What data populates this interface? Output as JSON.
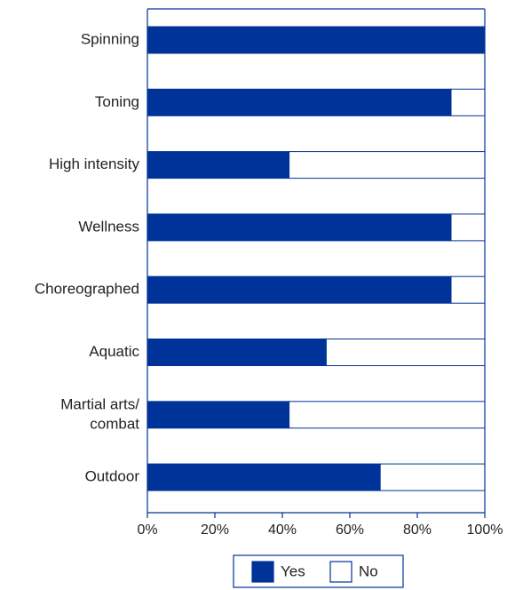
{
  "chart_data": {
    "type": "bar",
    "orientation": "horizontal",
    "stacked": true,
    "categories": [
      [
        "Spinning"
      ],
      [
        "Toning"
      ],
      [
        "High intensity"
      ],
      [
        "Wellness"
      ],
      [
        "Choreographed"
      ],
      [
        "Aquatic"
      ],
      [
        "Martial arts/",
        "combat"
      ],
      [
        "Outdoor"
      ]
    ],
    "series": [
      {
        "name": "Yes",
        "values": [
          100,
          90,
          42,
          90,
          90,
          53,
          42,
          69
        ],
        "color": "#003399"
      },
      {
        "name": "No",
        "values": [
          0,
          10,
          58,
          10,
          10,
          47,
          58,
          31
        ],
        "color": "#ffffff"
      }
    ],
    "xlim": [
      0,
      100
    ],
    "xticks": [
      0,
      20,
      40,
      60,
      80,
      100
    ],
    "xtick_labels": [
      "0%",
      "20%",
      "40%",
      "60%",
      "80%",
      "100%"
    ],
    "xlabel": "",
    "ylabel": "",
    "grid": false,
    "legend_position": "bottom-center",
    "frame_color": "#003399",
    "text_color": "#222222"
  }
}
